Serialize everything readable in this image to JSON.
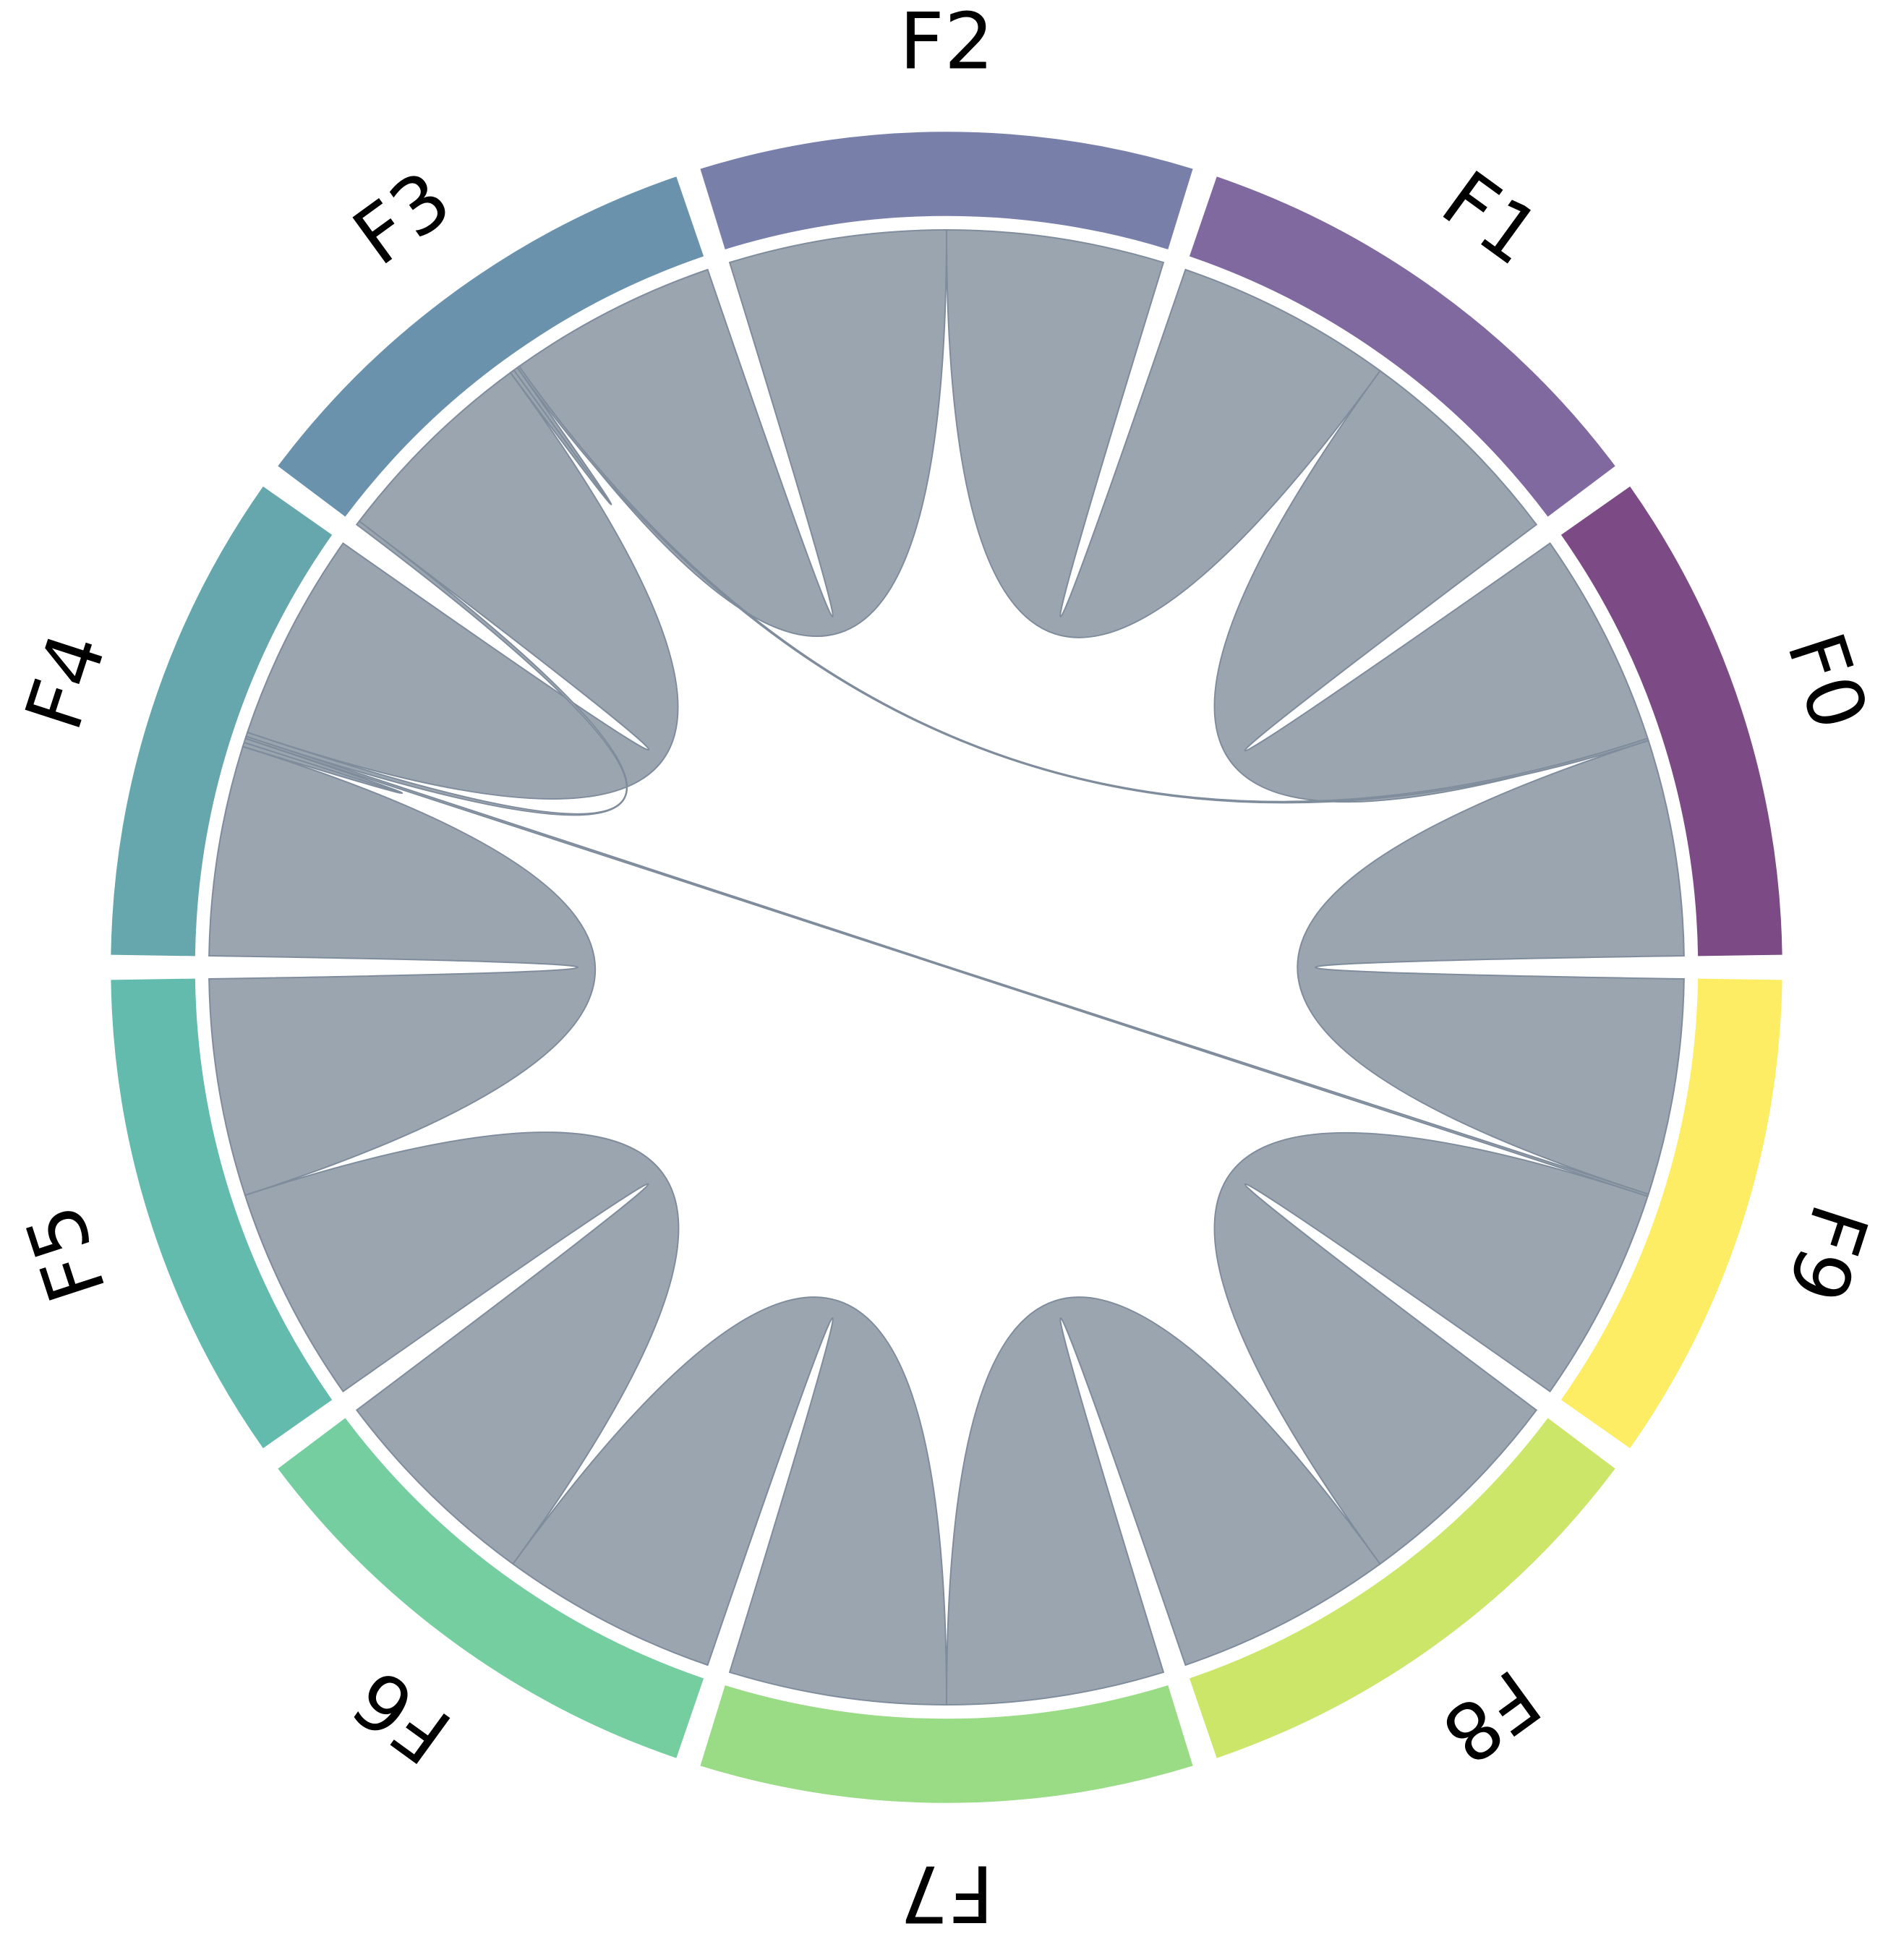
{
  "chart_data": {
    "type": "chord",
    "nodes": [
      {
        "id": "F0",
        "label": "F0",
        "color": "#7c4b85"
      },
      {
        "id": "F1",
        "label": "F1",
        "color": "#7f699f"
      },
      {
        "id": "F2",
        "label": "F2",
        "color": "#7880aa"
      },
      {
        "id": "F3",
        "label": "F3",
        "color": "#6b92ac"
      },
      {
        "id": "F4",
        "label": "F4",
        "color": "#65a7ad"
      },
      {
        "id": "F5",
        "label": "F5",
        "color": "#62bbad"
      },
      {
        "id": "F6",
        "label": "F6",
        "color": "#75cea0"
      },
      {
        "id": "F7",
        "label": "F7",
        "color": "#9adb86"
      },
      {
        "id": "F8",
        "label": "F8",
        "color": "#cce66a"
      },
      {
        "id": "F9",
        "label": "F9",
        "color": "#fced65"
      }
    ],
    "links": [
      {
        "source": "F0",
        "target": "F1",
        "value": 1.0
      },
      {
        "source": "F1",
        "target": "F2",
        "value": 1.0
      },
      {
        "source": "F2",
        "target": "F3",
        "value": 1.0
      },
      {
        "source": "F3",
        "target": "F4",
        "value": 1.0
      },
      {
        "source": "F4",
        "target": "F5",
        "value": 1.0
      },
      {
        "source": "F5",
        "target": "F6",
        "value": 1.0
      },
      {
        "source": "F6",
        "target": "F7",
        "value": 1.0
      },
      {
        "source": "F7",
        "target": "F8",
        "value": 1.0
      },
      {
        "source": "F8",
        "target": "F9",
        "value": 1.0
      },
      {
        "source": "F9",
        "target": "F0",
        "value": 1.0
      },
      {
        "source": "F3",
        "target": "F4",
        "value": 0.02
      },
      {
        "source": "F3",
        "target": "F0",
        "value": 0.01
      },
      {
        "source": "F4",
        "target": "F9",
        "value": 0.01
      },
      {
        "source": "F3",
        "target": "F3",
        "value": 0.02
      },
      {
        "source": "F4",
        "target": "F4",
        "value": 0.02
      }
    ],
    "ribbon_color": "#9ba5b0"
  }
}
